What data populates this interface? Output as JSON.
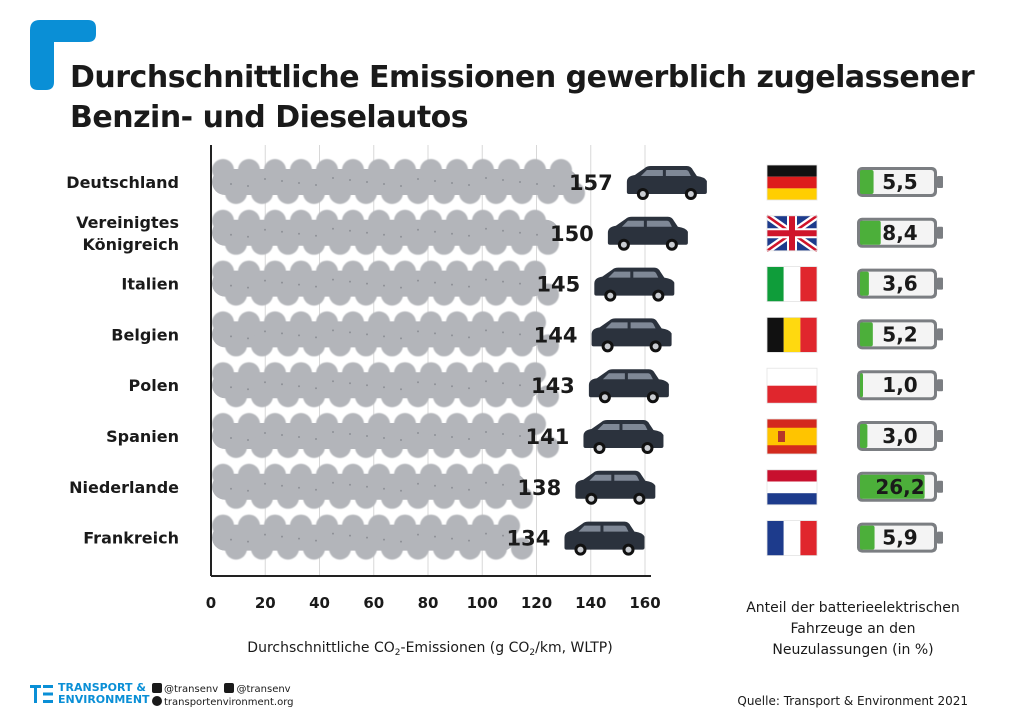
{
  "title": "Durchschnittliche Emissionen gewerblich zugelassener Benzin- und Dieselautos",
  "chart_data": {
    "type": "bar",
    "categories": [
      "Deutschland",
      "Vereinigtes Königreich",
      "Italien",
      "Belgien",
      "Polen",
      "Spanien",
      "Niederlande",
      "Frankreich"
    ],
    "category_lines": [
      [
        "Deutschland"
      ],
      [
        "Vereinigtes",
        "Königreich"
      ],
      [
        "Italien"
      ],
      [
        "Belgien"
      ],
      [
        "Polen"
      ],
      [
        "Spanien"
      ],
      [
        "Niederlande"
      ],
      [
        "Frankreich"
      ]
    ],
    "values": [
      157,
      150,
      145,
      144,
      143,
      141,
      138,
      134
    ],
    "value_labels": [
      "157",
      "150",
      "145",
      "144",
      "143",
      "141",
      "138",
      "134"
    ],
    "xlim": [
      0,
      160
    ],
    "xticks": [
      0,
      20,
      40,
      60,
      80,
      100,
      120,
      140,
      160
    ],
    "xlabel_parts": [
      "Durchschnittliche CO",
      "2",
      "-Emissionen (g CO",
      "2",
      "/km, WLTP)"
    ],
    "grid": true,
    "battery_share": {
      "values": [
        5.5,
        8.4,
        3.6,
        5.2,
        1.0,
        3.0,
        26.2,
        5.9
      ],
      "labels": [
        "5,5",
        "8,4",
        "3,6",
        "5,2",
        "1,0",
        "3,0",
        "26,2",
        "5,9"
      ],
      "caption_lines": [
        "Anteil der batterieelektrischen",
        "Fahrzeuge an den",
        "Neuzulassungen (in %)"
      ]
    },
    "flags": [
      "germany-flag",
      "uk-flag",
      "italy-flag",
      "belgium-flag",
      "poland-flag",
      "spain-flag",
      "netherlands-flag",
      "france-flag"
    ]
  },
  "colors": {
    "smoke": "#b3b5ba",
    "car": "#2b323d",
    "battery_fill": "#4caf3a",
    "accent": "#0a8fd6",
    "grid": "#d8d8d8"
  },
  "footer": {
    "source": "Quelle: Transport & Environment 2021",
    "org_line1": "TRANSPORT &",
    "org_line2": "ENVIRONMENT",
    "twitter": "@transenv",
    "facebook": "@transenv",
    "website": "transportenvironment.org"
  }
}
